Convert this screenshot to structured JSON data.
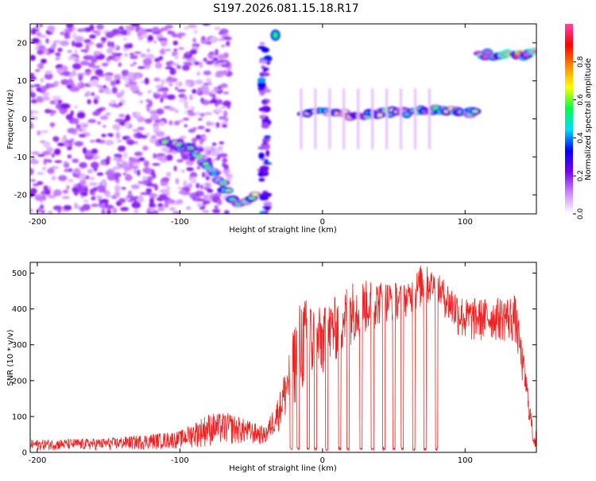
{
  "title": "S197.2026.081.15.18.R17",
  "chart_data": [
    {
      "type": "heatmap",
      "title": "S197.2026.081.15.18.R17",
      "xlabel": "Height of straight line (km)",
      "ylabel": "Frequency (Hz)",
      "xlim": [
        -205,
        150
      ],
      "ylim": [
        -25,
        25
      ],
      "xticks": [
        -200,
        -100,
        0,
        100
      ],
      "yticks": [
        -20,
        -10,
        0,
        10,
        20
      ],
      "colorbar": {
        "label": "Normalized spectral amplitude",
        "range": [
          0,
          1
        ],
        "ticks": [
          0.0,
          0.2,
          0.4,
          0.6,
          0.8
        ],
        "colors": [
          "#ffffff",
          "#cc88ff",
          "#7700ee",
          "#0000ff",
          "#00ddff",
          "#00ff44",
          "#ffff00",
          "#ff8800",
          "#ff0000",
          "#ff44aa"
        ]
      },
      "features": [
        {
          "name": "diffuse noise",
          "x_range": [
            -205,
            -65
          ],
          "freq_range": [
            -25,
            25
          ],
          "amplitude": 0.1
        },
        {
          "name": "descending line",
          "points": [
            [
              -112,
              -6
            ],
            [
              -92,
              -8
            ],
            [
              -80,
              -13
            ],
            [
              -68,
              -18
            ],
            [
              -58,
              -23
            ],
            [
              -45,
              -20
            ]
          ],
          "amplitude": 0.45
        },
        {
          "name": "vertical streak",
          "x_range": [
            -43,
            -38
          ],
          "freq_range": [
            -25,
            20
          ],
          "amplitude": 0.2
        },
        {
          "name": "top blob",
          "points": [
            [
              -33,
              22
            ]
          ],
          "amplitude": 0.35
        },
        {
          "name": "central band",
          "points": [
            [
              -12,
              1
            ],
            [
              0,
              2
            ],
            [
              20,
              1
            ],
            [
              40,
              1.5
            ],
            [
              60,
              1.8
            ],
            [
              80,
              2.5
            ],
            [
              110,
              1.5
            ]
          ],
          "amplitude": 0.5
        },
        {
          "name": "upper band",
          "points": [
            [
              110,
              17
            ],
            [
              150,
              17
            ]
          ],
          "amplitude": 0.9
        }
      ]
    },
    {
      "type": "line",
      "xlabel": "Height of straight line (km)",
      "ylabel": "SNR (10 * v/v)",
      "xlim": [
        -205,
        150
      ],
      "ylim": [
        0,
        530
      ],
      "xticks": [
        -200,
        -100,
        0,
        100
      ],
      "yticks": [
        0,
        100,
        200,
        300,
        400,
        500
      ],
      "color": "#ee2222",
      "envelope": [
        {
          "x": -205,
          "min": 5,
          "max": 35
        },
        {
          "x": -150,
          "min": 5,
          "max": 40
        },
        {
          "x": -100,
          "min": 10,
          "max": 60
        },
        {
          "x": -80,
          "min": 15,
          "max": 110
        },
        {
          "x": -65,
          "min": 20,
          "max": 110
        },
        {
          "x": -40,
          "min": 20,
          "max": 70
        },
        {
          "x": -30,
          "min": 60,
          "max": 170
        },
        {
          "x": -15,
          "min": 150,
          "max": 440
        },
        {
          "x": 0,
          "min": 200,
          "max": 400
        },
        {
          "x": 20,
          "min": 300,
          "max": 480
        },
        {
          "x": 40,
          "min": 350,
          "max": 480
        },
        {
          "x": 60,
          "min": 380,
          "max": 470
        },
        {
          "x": 70,
          "min": 400,
          "max": 530
        },
        {
          "x": 80,
          "min": 420,
          "max": 500
        },
        {
          "x": 90,
          "min": 340,
          "max": 470
        },
        {
          "x": 100,
          "min": 300,
          "max": 430
        },
        {
          "x": 120,
          "min": 310,
          "max": 430
        },
        {
          "x": 135,
          "min": 300,
          "max": 440
        },
        {
          "x": 142,
          "min": 150,
          "max": 250
        },
        {
          "x": 148,
          "min": 10,
          "max": 60
        }
      ],
      "dropouts_x": [
        -22,
        -17,
        -10,
        -5,
        3,
        12,
        18,
        27,
        35,
        43,
        50,
        56,
        64,
        72,
        80
      ]
    }
  ]
}
